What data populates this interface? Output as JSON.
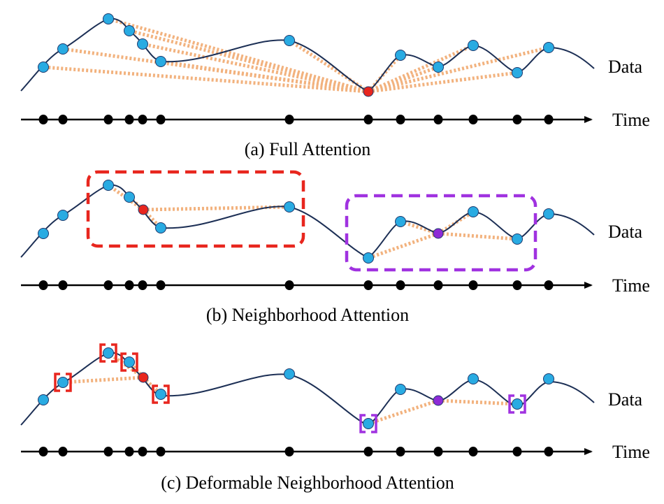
{
  "colors": {
    "curve": "#1c2f55",
    "point": "#29abe2",
    "query_red": "#e8261e",
    "query_purple": "#8e2bd6",
    "attention_line": "#f2b27e",
    "box_red": "#e8261e",
    "box_purple": "#a032e0",
    "axis": "#000000"
  },
  "panels": [
    {
      "id": "a",
      "caption": "(a) Full Attention",
      "data_label": "Data",
      "time_label": "Time",
      "mode": "full"
    },
    {
      "id": "b",
      "caption": "(b) Neighborhood Attention",
      "data_label": "Data",
      "time_label": "Time",
      "mode": "neighborhood"
    },
    {
      "id": "c",
      "caption": "(c) Deformable Neighborhood Attention",
      "data_label": "Data",
      "time_label": "Time",
      "mode": "deformable"
    }
  ]
}
